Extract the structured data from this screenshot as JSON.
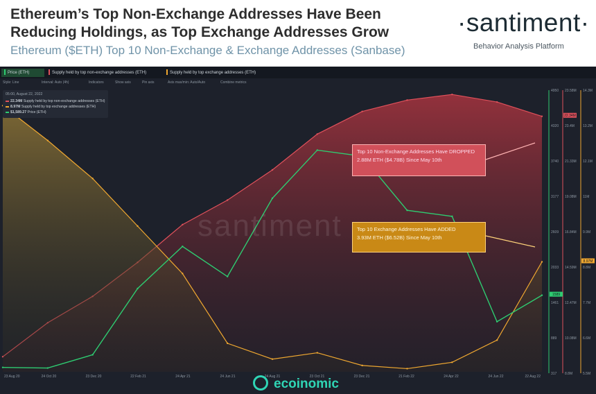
{
  "header": {
    "title": "Ethereum’s Top Non-Exchange Addresses Have Been Reducing Holdings, as Top Exchange Addresses Grow",
    "subtitle": "Ethereum ($ETH) Top 10 Non-Exchange & Exchange Addresses (Sanbase)",
    "brand": "·santiment·",
    "brand_tagline": "Behavior Analysis Platform"
  },
  "tabs": [
    {
      "label": "Price (ETH)",
      "color": "#2ecc71"
    },
    {
      "label": "Supply held by top non-exchange addresses (ETH)",
      "color": "#e0515b"
    },
    {
      "label": "Supply held by top exchange addresses (ETH)",
      "color": "#f0a830"
    }
  ],
  "toolbar": {
    "style": "Style: Line",
    "interval": "Interval: Auto (4h)",
    "indicators": "Indicators",
    "show_axis": "Show axis",
    "pin_axis": "Pin axis",
    "axis_max_min": "Axis max/min: Auto/Auto",
    "combine": "Combine metrics"
  },
  "legend": {
    "date": "05:00, August 22, 2022",
    "items": [
      {
        "value": "22.34M",
        "label": "Supply held by top non-exchange addresses (ETH)",
        "color": "#e0515b"
      },
      {
        "value": "8.97M",
        "label": "Supply held by top exchange addresses (ETH)",
        "color": "#f0a830"
      },
      {
        "value": "$1,589.27",
        "label": "Price (ETH)",
        "color": "#2ecc71"
      }
    ]
  },
  "annotations": {
    "red_line1": "Top 10 Non-Exchange Addresses Have DROPPED",
    "red_line2": "2.88M ETH ($4.78B) Since May 10th",
    "gold_line1": "Top 10 Exchange Addresses Have ADDED",
    "gold_line2": "3.93M ETH ($6.52B) Since May 10th"
  },
  "watermark": "santiment",
  "source_logo": "ecoinomic",
  "axes": {
    "price_ticks": [
      "4950",
      "4320",
      "3740",
      "3177",
      "2609",
      "2033",
      "1461",
      "889",
      "317"
    ],
    "price_current": "1589",
    "nonexch_ticks": [
      "23.58M",
      "23.4M",
      "21.33M",
      "19.08M",
      "16.84M",
      "14.59M",
      "12.47M",
      "10.08M",
      "8.8M"
    ],
    "nonexch_current": "22.34M",
    "exch_ticks": [
      "14.3M",
      "13.2M",
      "12.1M",
      "11M",
      "9.9M",
      "8.8M",
      "7.7M",
      "6.6M",
      "5.5M"
    ],
    "exch_current": "8.97M",
    "x_ticks": [
      "23 Aug 20",
      "24 Oct 20",
      "23 Dec 20",
      "22 Feb 21",
      "24 Apr 21",
      "24 Jun 21",
      "24 Aug 21",
      "23 Oct 21",
      "23 Dec 21",
      "21 Feb 22",
      "24 Apr 22",
      "24 Jun 22",
      "22 Aug 22"
    ]
  },
  "chart_data": {
    "type": "line",
    "x": [
      "2020-08-23",
      "2020-10-24",
      "2020-12-23",
      "2021-02-22",
      "2021-04-24",
      "2021-06-24",
      "2021-08-24",
      "2021-10-23",
      "2021-12-23",
      "2022-02-21",
      "2022-04-24",
      "2022-06-24",
      "2022-08-22"
    ],
    "series": [
      {
        "name": "Price (ETH)",
        "color": "#2ecc71",
        "values": [
          390,
          380,
          600,
          1700,
          2400,
          1900,
          3200,
          4000,
          3900,
          3000,
          2900,
          1150,
          1589
        ]
      },
      {
        "name": "Supply held by top non-exchange addresses (ETH)",
        "color": "#e0515b",
        "values": [
          9.6,
          11.4,
          12.8,
          14.6,
          16.6,
          17.9,
          19.5,
          21.4,
          22.6,
          23.2,
          23.5,
          23.1,
          22.34
        ]
      },
      {
        "name": "Supply held by top exchange addresses (ETH)",
        "color": "#f0a830",
        "values": [
          13.9,
          12.8,
          11.6,
          10.1,
          8.6,
          6.4,
          5.9,
          6.1,
          5.7,
          5.6,
          5.8,
          6.5,
          8.97
        ]
      }
    ],
    "price_range": [
      317,
      4950
    ],
    "nonexch_range": [
      8.8,
      23.58
    ],
    "exch_range": [
      5.5,
      14.3
    ],
    "grid": false
  }
}
